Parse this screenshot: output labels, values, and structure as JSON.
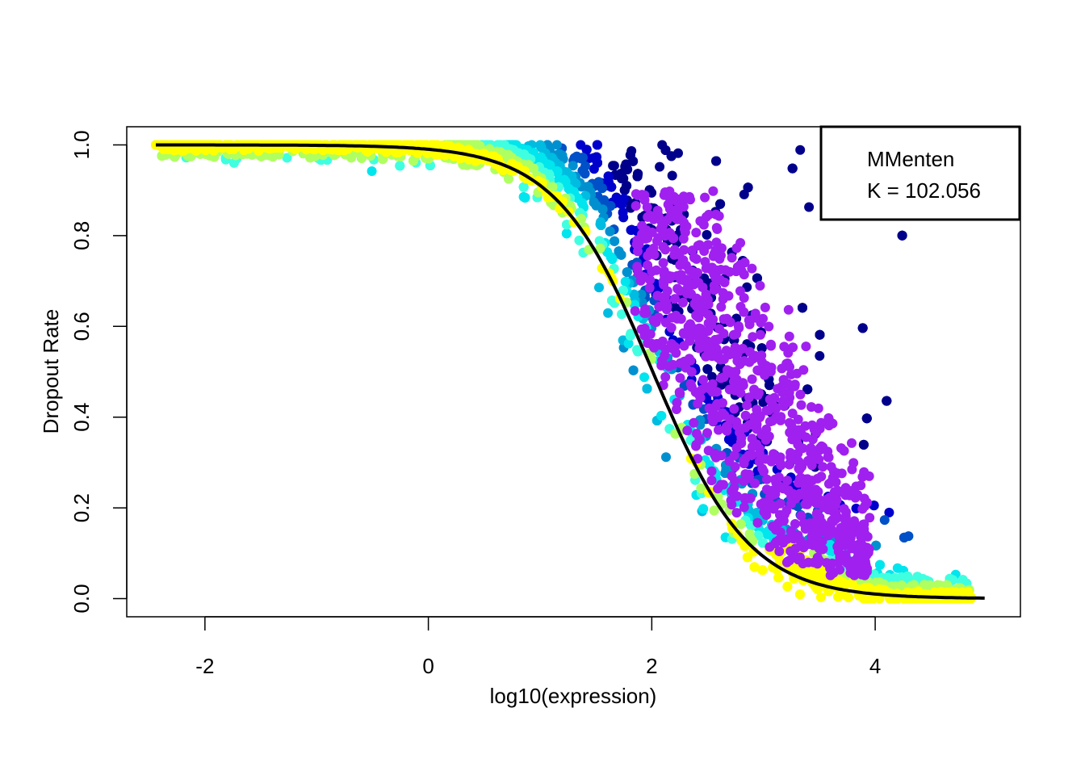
{
  "chart_data": {
    "type": "scatter",
    "xlabel": "log10(expression)",
    "ylabel": "Dropout Rate",
    "xlim": [
      -2.7,
      5.3
    ],
    "ylim": [
      -0.04,
      1.04
    ],
    "x_ticks": [
      -2,
      0,
      2,
      4
    ],
    "x_tick_labels": [
      "-2",
      "0",
      "2",
      "4"
    ],
    "y_ticks": [
      0.0,
      0.2,
      0.4,
      0.6,
      0.8,
      1.0
    ],
    "y_tick_labels": [
      "0.0",
      "0.2",
      "0.4",
      "0.6",
      "0.8",
      "1.0"
    ],
    "grid": false,
    "legend": {
      "placement": "top-right",
      "lines": [
        "MMenten",
        "K = 102.056"
      ]
    },
    "fit_curve": {
      "model": "Michaelis-Menten",
      "K": 102.056,
      "x_range": [
        -2.44,
        4.98
      ],
      "color": "#000000"
    },
    "density_colors": [
      "#00008B",
      "#0000CD",
      "#0050C8",
      "#0090D0",
      "#00BCE0",
      "#00E5EE",
      "#40FFE0",
      "#B0FF60",
      "#FFFF00"
    ],
    "highlight_color": "#A020F0",
    "point_density_outline": {
      "upper_edge": [
        [
          -2.44,
          1.0
        ],
        [
          -1.0,
          1.0
        ],
        [
          0.0,
          1.0
        ],
        [
          1.0,
          0.99
        ],
        [
          1.5,
          0.96
        ],
        [
          2.0,
          0.86
        ],
        [
          2.5,
          0.72
        ],
        [
          3.0,
          0.55
        ],
        [
          3.5,
          0.42
        ],
        [
          3.9,
          0.22
        ],
        [
          4.3,
          0.04
        ],
        [
          4.98,
          0.0
        ]
      ],
      "lower_edge": [
        [
          -2.44,
          1.0
        ],
        [
          -1.5,
          0.99
        ],
        [
          -1.0,
          0.93
        ],
        [
          -0.5,
          0.83
        ],
        [
          0.0,
          0.62
        ],
        [
          0.5,
          0.38
        ],
        [
          1.0,
          0.18
        ],
        [
          1.5,
          0.05
        ],
        [
          2.0,
          0.0
        ],
        [
          4.98,
          0.0
        ]
      ]
    },
    "highlight_region": {
      "label": "",
      "x_range": [
        1.8,
        4.0
      ],
      "y_range": [
        0.05,
        0.9
      ]
    },
    "densest_region": {
      "x": 3.0,
      "y": 0.03
    }
  }
}
